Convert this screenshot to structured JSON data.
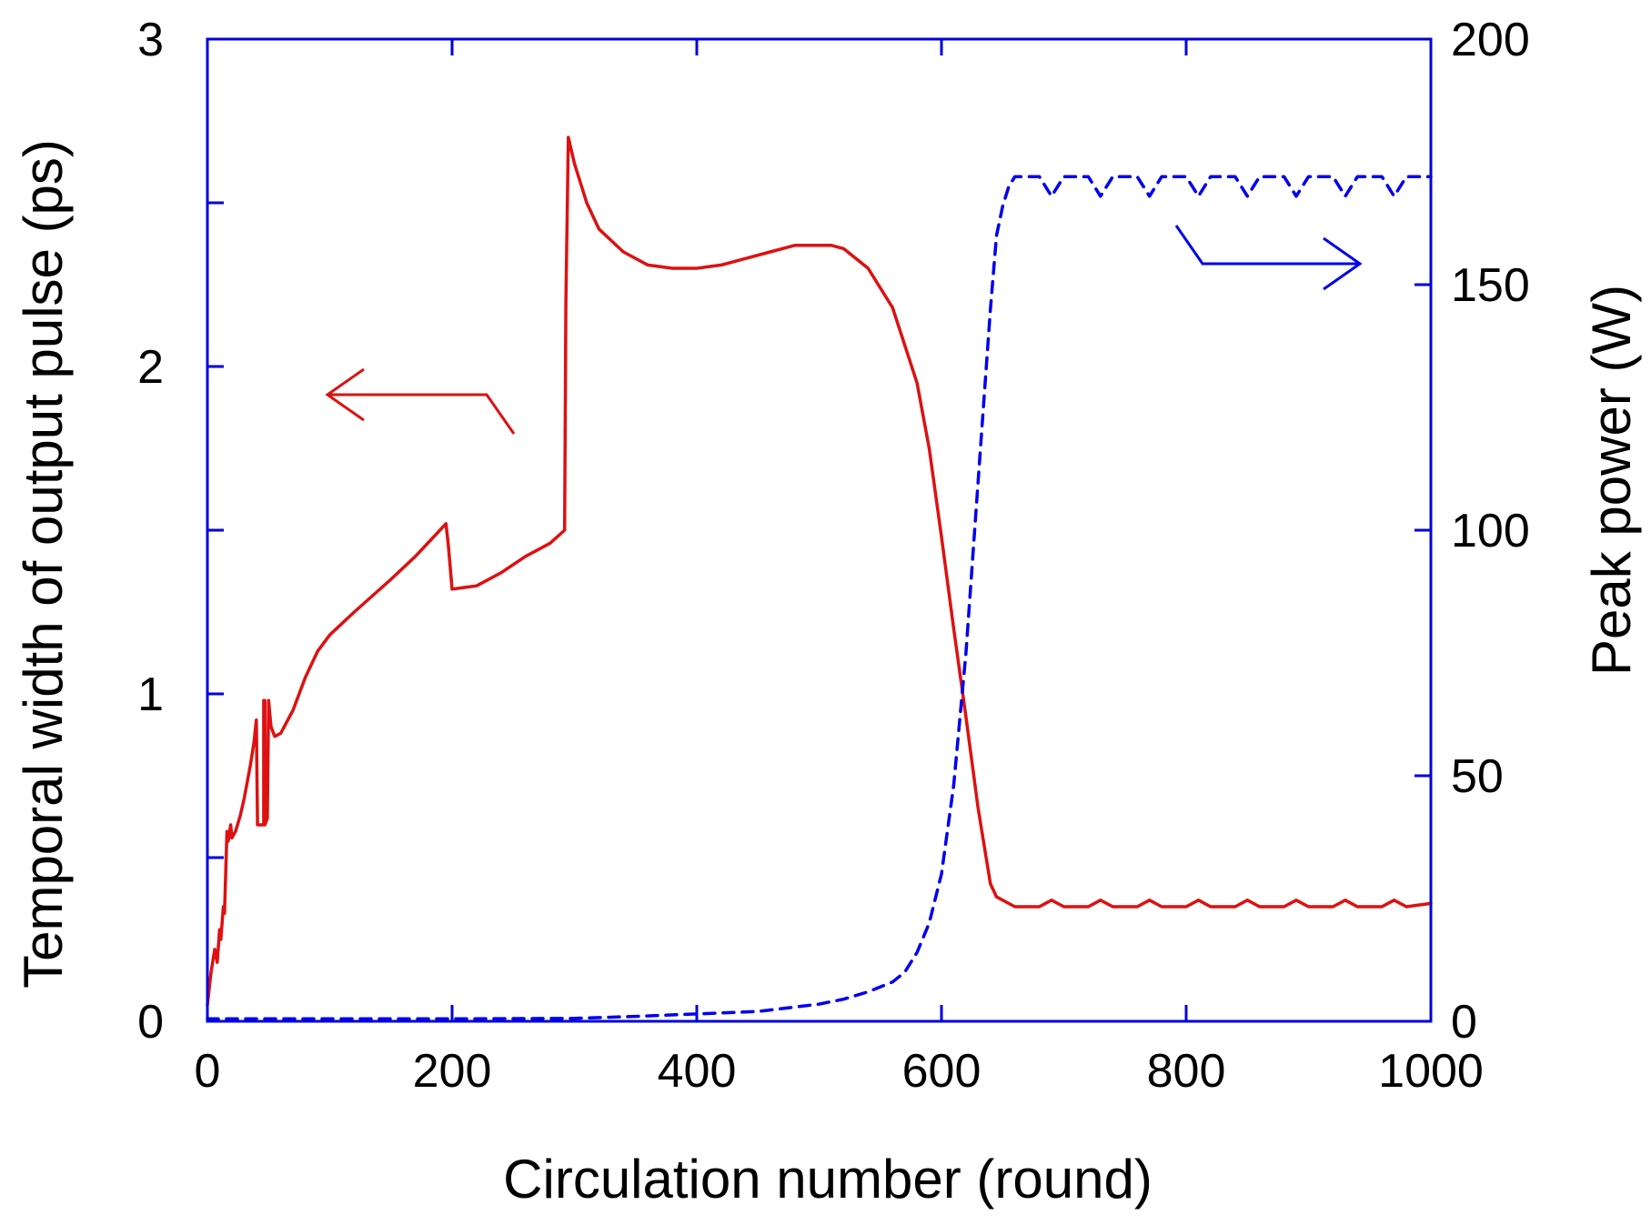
{
  "chart_data": {
    "type": "line",
    "xlabel": "Circulation number (round)",
    "ylabel": "Temporal width of output pulse (ps)",
    "y2label": "Peak power (W)",
    "xlim": [
      0,
      1000
    ],
    "ylim": [
      0,
      3
    ],
    "y2lim": [
      0,
      200
    ],
    "x_ticks": [
      0,
      200,
      400,
      600,
      800,
      1000
    ],
    "y_ticks": [
      0,
      1,
      2,
      3
    ],
    "y_minor_ticks": [
      0.5,
      1.5,
      2.5
    ],
    "y2_ticks": [
      0,
      50,
      100,
      150,
      200
    ],
    "frame_color": "#0000dd",
    "legend": "arrows pointing to axes: red arrow left (temporal width), blue arrow right (peak power)",
    "series": [
      {
        "axis": "left",
        "color": "#dd1111",
        "style": "solid",
        "x": [
          0,
          3,
          6,
          8,
          10,
          11,
          13,
          14,
          16,
          17,
          19,
          20,
          23,
          27,
          30,
          35,
          38,
          40,
          41,
          46,
          46,
          47,
          47,
          49,
          50,
          52,
          55,
          60,
          70,
          80,
          90,
          100,
          120,
          150,
          170,
          190,
          195,
          197,
          200,
          220,
          240,
          260,
          280,
          292,
          293,
          295,
          300,
          310,
          320,
          340,
          360,
          380,
          400,
          420,
          440,
          460,
          480,
          500,
          510,
          520,
          540,
          560,
          580,
          590,
          600,
          610,
          620,
          630,
          640,
          645,
          660,
          680,
          690,
          700,
          720,
          730,
          740,
          760,
          770,
          780,
          800,
          810,
          820,
          840,
          850,
          860,
          880,
          890,
          900,
          920,
          930,
          940,
          960,
          970,
          980,
          1000
        ],
        "y": [
          0.05,
          0.15,
          0.22,
          0.18,
          0.28,
          0.25,
          0.35,
          0.33,
          0.58,
          0.55,
          0.6,
          0.56,
          0.58,
          0.63,
          0.68,
          0.78,
          0.85,
          0.92,
          0.6,
          0.6,
          0.98,
          0.98,
          0.6,
          0.62,
          0.98,
          0.9,
          0.87,
          0.88,
          0.95,
          1.05,
          1.13,
          1.18,
          1.25,
          1.35,
          1.42,
          1.5,
          1.52,
          1.45,
          1.32,
          1.33,
          1.37,
          1.42,
          1.46,
          1.5,
          2.2,
          2.7,
          2.62,
          2.5,
          2.42,
          2.35,
          2.31,
          2.3,
          2.3,
          2.31,
          2.33,
          2.35,
          2.37,
          2.37,
          2.37,
          2.36,
          2.3,
          2.18,
          1.95,
          1.75,
          1.48,
          1.2,
          0.93,
          0.65,
          0.42,
          0.38,
          0.35,
          0.35,
          0.37,
          0.35,
          0.35,
          0.37,
          0.35,
          0.35,
          0.37,
          0.35,
          0.35,
          0.37,
          0.35,
          0.35,
          0.37,
          0.35,
          0.35,
          0.37,
          0.35,
          0.35,
          0.37,
          0.35,
          0.35,
          0.37,
          0.35,
          0.36
        ]
      },
      {
        "axis": "right",
        "color": "#0000ee",
        "style": "dashed",
        "x": [
          0,
          50,
          100,
          200,
          300,
          350,
          400,
          450,
          500,
          520,
          540,
          560,
          570,
          580,
          590,
          600,
          610,
          620,
          630,
          640,
          645,
          650,
          655,
          660,
          670,
          680,
          690,
          700,
          720,
          730,
          740,
          760,
          770,
          780,
          800,
          810,
          820,
          840,
          850,
          860,
          880,
          890,
          900,
          920,
          930,
          940,
          960,
          970,
          980,
          1000
        ],
        "y": [
          0.5,
          0.5,
          0.5,
          0.5,
          0.6,
          1,
          1.5,
          2,
          3.5,
          4.5,
          6,
          8,
          10,
          14,
          20,
          30,
          48,
          75,
          110,
          145,
          160,
          166,
          170,
          172,
          172,
          172,
          168,
          172,
          172,
          168,
          172,
          172,
          168,
          172,
          172,
          168,
          172,
          172,
          168,
          172,
          172,
          168,
          172,
          172,
          168,
          172,
          172,
          168,
          172,
          172
        ]
      }
    ]
  }
}
